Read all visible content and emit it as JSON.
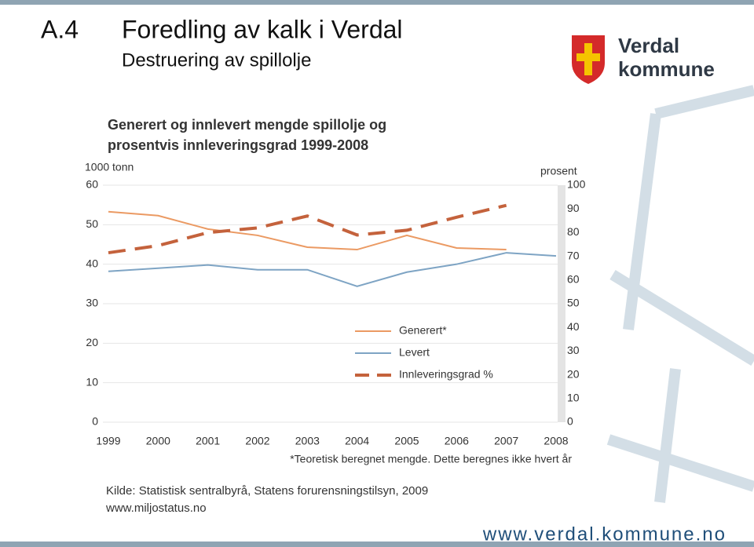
{
  "slide": {
    "number": "A.4",
    "title": "Foredling av kalk i Verdal",
    "subtitle": "Destruering av spillolje",
    "logo_lines": [
      "Verdal",
      "kommune"
    ],
    "url": "www.verdal.kommune.no"
  },
  "chart_data": {
    "type": "line",
    "title": [
      "Generert og innlevert mengde spillolje og",
      "prosentvis innleveringsgrad 1999-2008"
    ],
    "ylabel": "1000 tonn",
    "y2label": "prosent",
    "categories": [
      "1999",
      "2000",
      "2001",
      "2002",
      "2003",
      "2004",
      "2005",
      "2006",
      "2007",
      "2008"
    ],
    "series": [
      {
        "name": "Generert*",
        "color": "#eb9a63",
        "style": "solid",
        "values": [
          53.3,
          52.3,
          48.9,
          47.3,
          44.3,
          43.7,
          47.3,
          44.1,
          43.7,
          null
        ]
      },
      {
        "name": "Levert",
        "color": "#7ea4c4",
        "style": "solid",
        "values": [
          38.2,
          39,
          39.8,
          38.6,
          38.6,
          34.4,
          38,
          40,
          42.9,
          42.1
        ]
      },
      {
        "name": "Innleveringsgrad %",
        "color": "#c4623c",
        "style": "dashed",
        "axis": "y2",
        "values": [
          71.5,
          74.5,
          80,
          82,
          87,
          79,
          81,
          86.5,
          91.5,
          null
        ]
      }
    ],
    "ylim": [
      0,
      60
    ],
    "yticks": [
      0,
      10,
      20,
      30,
      40,
      50,
      60
    ],
    "y2lim": [
      0,
      100
    ],
    "y2ticks": [
      0,
      10,
      20,
      30,
      40,
      50,
      60,
      70,
      80,
      90,
      100
    ],
    "grid": true,
    "legend": "lower right",
    "footnote": "*Teoretisk beregnet mengde. Dette beregnes ikke hvert år",
    "source": [
      "Kilde: Statistisk sentralbyrå, Statens forurensningstilsyn, 2009",
      "www.miljostatus.no"
    ]
  }
}
